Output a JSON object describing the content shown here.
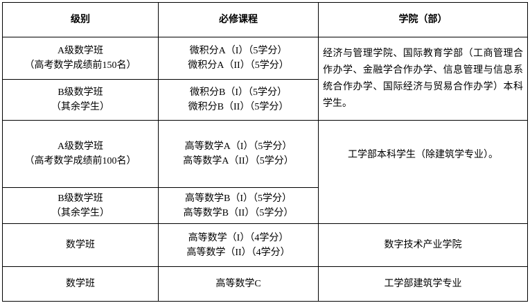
{
  "headers": [
    "级别",
    "必修课程",
    "学院（部）"
  ],
  "rows": [
    {
      "level": [
        "A级数学班",
        "（高考数学成绩前150名）"
      ],
      "courses": [
        "微积分A（I）（5学分）",
        "微积分A（II）（5学分）"
      ]
    },
    {
      "level": [
        "B级数学班",
        "（其余学生）"
      ],
      "courses": [
        "微积分B（I）（5学分）",
        "微积分B（II）（5学分）"
      ]
    },
    {
      "level": [
        "A级数学班",
        "（高考数学成绩前100名）"
      ],
      "courses": [
        "高等数学A（I）（5学分）",
        "高等数学A（II）（5学分）"
      ]
    },
    {
      "level": [
        "B级数学班",
        "（其余学生）"
      ],
      "courses": [
        "高等数学B（I）（5学分）",
        "高等数学B（II）（5学分）"
      ]
    },
    {
      "level": [
        "数学班"
      ],
      "courses": [
        "高等数学（I）（4学分）",
        "高等数学（II）（4学分）"
      ]
    },
    {
      "level": [
        "数学班"
      ],
      "courses": [
        "高等数学C"
      ]
    }
  ],
  "colleges": [
    "经济与管理学院、国际教育学部（工商管理合作办学、金融学合作办学、信息管理与信息系统合作办学、国际经济与贸易合作办学）本科学生。",
    "工学部本科学生（除建筑学专业）。",
    "数字技术产业学院",
    "工学部建筑学专业"
  ]
}
